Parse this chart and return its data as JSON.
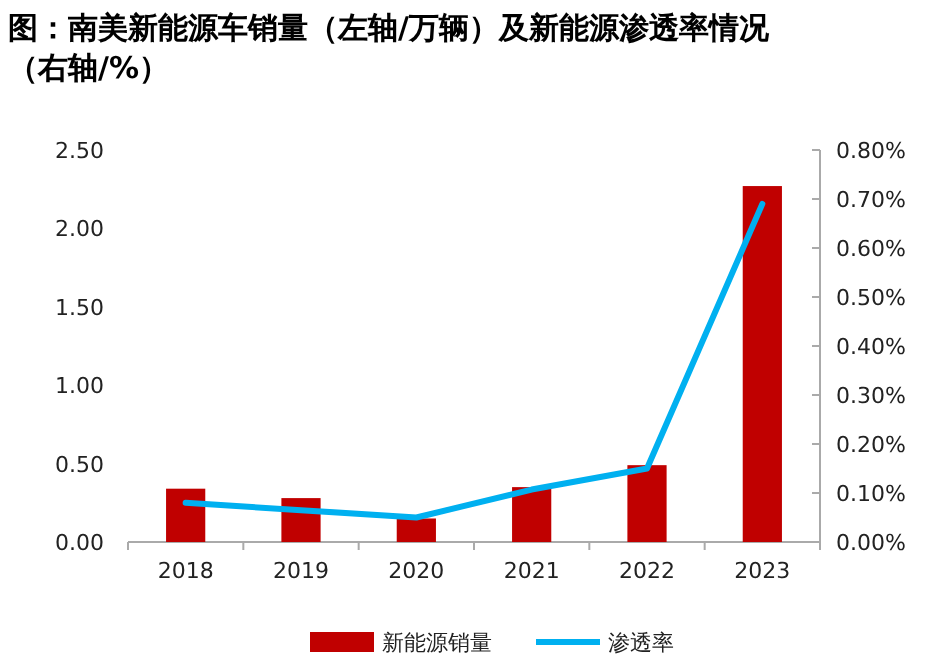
{
  "chart_data": {
    "type": "bar",
    "title": "图：南美新能源车销量（左轴/万辆）及新能源渗透率情况（右轴/%）",
    "categories": [
      "2018",
      "2019",
      "2020",
      "2021",
      "2022",
      "2023"
    ],
    "series": [
      {
        "name": "新能源销量",
        "color": "#c00000",
        "values": [
          0.34,
          0.28,
          0.15,
          0.35,
          0.49,
          2.27
        ]
      },
      {
        "name": "渗透率",
        "type": "line",
        "axis": "y2",
        "color": "#00b0f0",
        "values": [
          0.08,
          0.065,
          0.05,
          0.107,
          0.15,
          0.69
        ]
      }
    ],
    "ylim": [
      0,
      2.5
    ],
    "yticks": [
      {
        "value": 0,
        "label": "0.00"
      },
      {
        "value": 0.5,
        "label": "0.50"
      },
      {
        "value": 1,
        "label": "1.00"
      },
      {
        "value": 1.5,
        "label": "1.50"
      },
      {
        "value": 2,
        "label": "2.00"
      },
      {
        "value": 2.5,
        "label": "2.50"
      }
    ],
    "y2lim": [
      0,
      0.8
    ],
    "y2ticks": [
      {
        "value": 0,
        "label": "0.00%"
      },
      {
        "value": 0.1,
        "label": "0.10%"
      },
      {
        "value": 0.2,
        "label": "0.20%"
      },
      {
        "value": 0.3,
        "label": "0.30%"
      },
      {
        "value": 0.4,
        "label": "0.40%"
      },
      {
        "value": 0.5,
        "label": "0.50%"
      },
      {
        "value": 0.6,
        "label": "0.60%"
      },
      {
        "value": 0.7,
        "label": "0.70%"
      },
      {
        "value": 0.8,
        "label": "0.80%"
      }
    ],
    "legend": "bottom",
    "grid": false
  }
}
